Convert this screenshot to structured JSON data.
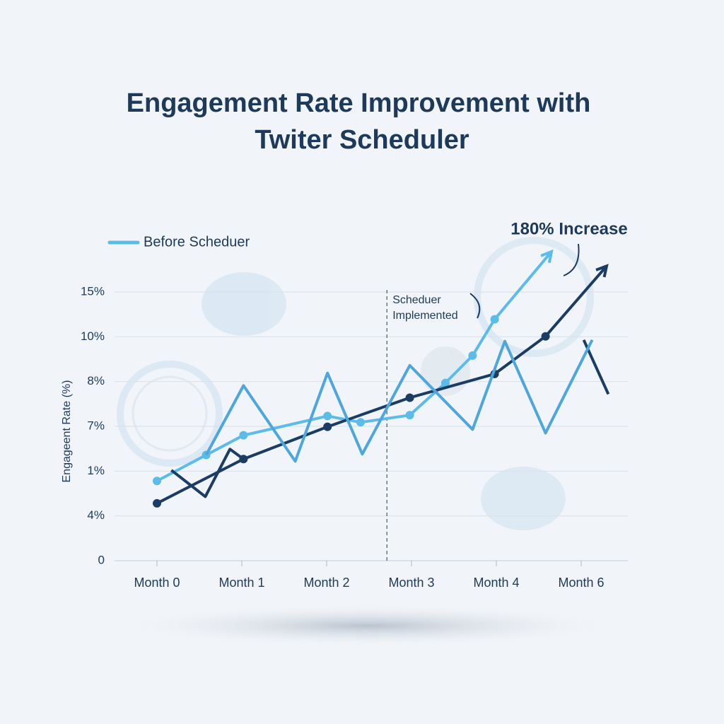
{
  "chart_data": {
    "type": "line",
    "title_lines": [
      "Engagement Rate Improvement with",
      "Twiter Scheduler"
    ],
    "y_label": "Engageent Rate (%)",
    "annotation": "180% Increase",
    "event_label_lines": [
      "Scheduer",
      "Implemented"
    ],
    "event_x": 2.71,
    "categories": [
      "Month 0",
      "Month 1",
      "Month 2",
      "Month 3",
      "Month 4",
      "Month 6"
    ],
    "xlim": [
      0,
      5
    ],
    "ylim": [
      0,
      6
    ],
    "yticks": [
      {
        "value": 0,
        "label": "0"
      },
      {
        "value": 1,
        "label": "4%"
      },
      {
        "value": 2,
        "label": "1%"
      },
      {
        "value": 3,
        "label": "7%"
      },
      {
        "value": 4,
        "label": "8%"
      },
      {
        "value": 5,
        "label": "10%"
      },
      {
        "value": 6,
        "label": "15%"
      }
    ],
    "grid": true,
    "series": [
      {
        "name": "Before Scheduer",
        "color": "#5bbbe9",
        "markers": true,
        "arrow": true,
        "x": [
          0,
          0.58,
          1.02,
          2.01,
          2.4,
          2.98,
          3.4,
          3.72,
          3.98,
          4.65
        ],
        "values": [
          1.78,
          2.36,
          2.8,
          3.23,
          3.09,
          3.25,
          3.97,
          4.58,
          5.39,
          6.9
        ]
      },
      {
        "color": "#1b3d63",
        "markers": true,
        "arrow": true,
        "x": [
          0,
          1.02,
          2.01,
          2.98,
          3.98,
          4.58,
          5.3
        ],
        "values": [
          1.28,
          2.27,
          2.99,
          3.64,
          4.17,
          5.01,
          6.58
        ]
      },
      {
        "color": "#1b3d63",
        "markers": false,
        "arrow": false,
        "x": [
          0.17,
          0.57,
          0.86,
          1.02,
          4.5,
          5.03,
          5.32
        ],
        "values": [
          2.02,
          1.43,
          2.49,
          2.27,
          null,
          4.93,
          3.72
        ]
      },
      {
        "color": "#4ea7dc",
        "markers": false,
        "arrow": false,
        "x": [
          0.58,
          1.02,
          1.63,
          2.01,
          2.42,
          2.98,
          3.72,
          4.1,
          4.58,
          5.13
        ],
        "values": [
          2.36,
          3.91,
          2.22,
          4.19,
          2.38,
          4.36,
          2.93,
          4.9,
          2.85,
          4.93
        ]
      }
    ]
  }
}
